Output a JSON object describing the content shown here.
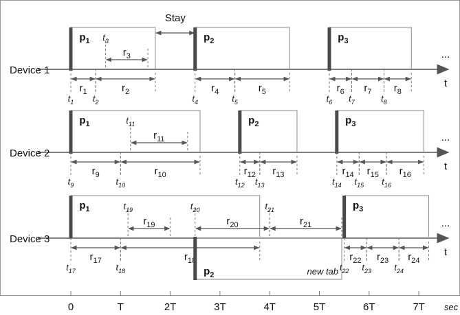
{
  "devices": [
    {
      "label": "Device 1",
      "pages": [
        {
          "name": "p1",
          "time": 0
        },
        {
          "name": "p2",
          "time": 2.5
        },
        {
          "name": "p3",
          "time": 5.2
        }
      ],
      "ticks": [
        {
          "label": "t1",
          "time": 0
        },
        {
          "label": "t2",
          "time": 0.5
        },
        {
          "label": "t3",
          "time": 0.7
        },
        {
          "label": "t4",
          "time": 2.5
        },
        {
          "label": "t5",
          "time": 3.3
        },
        {
          "label": "t6",
          "time": 5.2
        },
        {
          "label": "t7",
          "time": 5.65
        },
        {
          "label": "t8",
          "time": 6.3
        }
      ],
      "intervals_below": [
        {
          "label": "r1",
          "start": 0,
          "end": 0.5
        },
        {
          "label": "r2",
          "start": 0.5,
          "end": 1.7
        },
        {
          "label": "r4",
          "start": 2.5,
          "end": 3.3
        },
        {
          "label": "r5",
          "start": 3.3,
          "end": 4.4
        },
        {
          "label": "r6",
          "start": 5.2,
          "end": 5.65
        },
        {
          "label": "r7",
          "start": 5.65,
          "end": 6.3
        },
        {
          "label": "r8",
          "start": 6.3,
          "end": 6.85
        }
      ],
      "intervals_above": [
        {
          "label": "r3",
          "start": 0.7,
          "end": 1.55
        }
      ]
    },
    {
      "label": "Device 2",
      "pages": [
        {
          "name": "p1",
          "time": 0
        },
        {
          "name": "p2",
          "time": 3.4
        },
        {
          "name": "p3",
          "time": 5.35
        }
      ],
      "ticks": [
        {
          "label": "t9",
          "time": 0
        },
        {
          "label": "t10",
          "time": 1
        },
        {
          "label": "t11",
          "time": 1.2
        },
        {
          "label": "t12",
          "time": 3.4
        },
        {
          "label": "t13",
          "time": 3.8
        },
        {
          "label": "t14",
          "time": 5.35
        },
        {
          "label": "t15",
          "time": 5.8
        },
        {
          "label": "t16",
          "time": 6.35
        }
      ],
      "intervals_below": [
        {
          "label": "r9",
          "start": 0,
          "end": 1
        },
        {
          "label": "r10",
          "start": 1,
          "end": 2.6
        },
        {
          "label": "r12",
          "start": 3.4,
          "end": 3.8
        },
        {
          "label": "r13",
          "start": 3.8,
          "end": 4.55
        },
        {
          "label": "r14",
          "start": 5.35,
          "end": 5.8
        },
        {
          "label": "r15",
          "start": 5.8,
          "end": 6.35
        },
        {
          "label": "r16",
          "start": 6.35,
          "end": 7.1
        }
      ],
      "intervals_above": [
        {
          "label": "r11",
          "start": 1.2,
          "end": 2.35
        }
      ]
    },
    {
      "label": "Device 3",
      "pages": [
        {
          "name": "p1",
          "time": 0
        },
        {
          "name": "p3",
          "time": 5.5
        }
      ],
      "new_tab_page": {
        "name": "p2",
        "time": 2.5,
        "end": 5.45,
        "text": "new tab"
      },
      "ticks_below": [
        {
          "label": "t17",
          "time": 0
        },
        {
          "label": "t18",
          "time": 1
        },
        {
          "label": "t22",
          "time": 5.5
        },
        {
          "label": "t23",
          "time": 5.95
        },
        {
          "label": "t24",
          "time": 6.6
        }
      ],
      "ticks_above": [
        {
          "label": "t19",
          "time": 1.15
        },
        {
          "label": "t20",
          "time": 2.5
        },
        {
          "label": "t21",
          "time": 4
        }
      ],
      "intervals_below": [
        {
          "label": "r17",
          "start": 0,
          "end": 1
        },
        {
          "label": "r18",
          "start": 1,
          "end": 3.8
        },
        {
          "label": "r22",
          "start": 5.5,
          "end": 5.95
        },
        {
          "label": "r23",
          "start": 5.95,
          "end": 6.6
        },
        {
          "label": "r24",
          "start": 6.6,
          "end": 7.2
        }
      ],
      "intervals_above": [
        {
          "label": "r19",
          "start": 1.15,
          "end": 2
        },
        {
          "label": "r20",
          "start": 2.5,
          "end": 4
        },
        {
          "label": "r21",
          "start": 4,
          "end": 5.45
        }
      ]
    }
  ],
  "stay": {
    "label": "Stay",
    "start": 1.7,
    "end": 2.5
  },
  "time_label": "t",
  "ellipsis": "...",
  "x_axis": {
    "ticks": [
      {
        "label": "0",
        "value": 0
      },
      {
        "label": "T",
        "value": 1
      },
      {
        "label": "2T",
        "value": 2
      },
      {
        "label": "3T",
        "value": 3
      },
      {
        "label": "4T",
        "value": 4
      },
      {
        "label": "5T",
        "value": 5
      },
      {
        "label": "6T",
        "value": 6
      },
      {
        "label": "7T",
        "value": 7
      }
    ],
    "unit": "sec"
  },
  "colors": {
    "bar": "#4a4a4a",
    "line": "#555555",
    "box": "#8a8a8a",
    "dash": "#777777"
  }
}
